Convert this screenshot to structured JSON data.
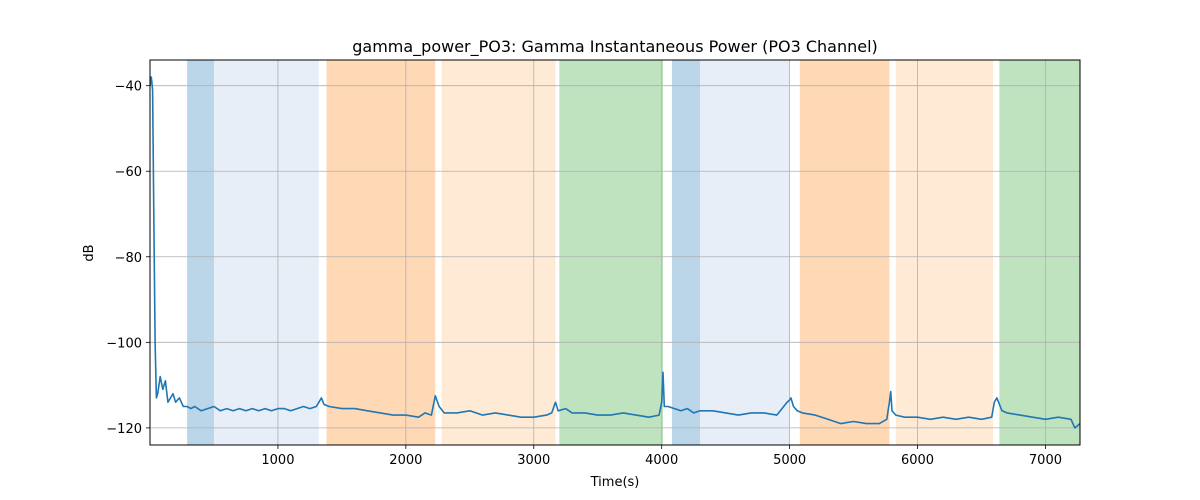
{
  "chart_data": {
    "type": "line",
    "title": "gamma_power_PO3: Gamma Instantaneous Power (PO3 Channel)",
    "xlabel": "Time(s)",
    "ylabel": "dB",
    "xlim": [
      0,
      7270
    ],
    "ylim": [
      -124,
      -34
    ],
    "x_ticks": [
      1000,
      2000,
      3000,
      4000,
      5000,
      6000,
      7000
    ],
    "x_tick_labels": [
      "1000",
      "2000",
      "3000",
      "4000",
      "5000",
      "6000",
      "7000"
    ],
    "y_ticks": [
      -40,
      -60,
      -80,
      -100,
      -120
    ],
    "y_tick_labels": [
      "−40",
      "−60",
      "−80",
      "−100",
      "−120"
    ],
    "grid": true,
    "line_color": "#1f77b4",
    "shaded_regions": [
      {
        "x0": 290,
        "x1": 500,
        "color": "#1f77b4",
        "opacity": 0.3
      },
      {
        "x0": 500,
        "x1": 1320,
        "color": "#aec7e8",
        "opacity": 0.3
      },
      {
        "x0": 1380,
        "x1": 2230,
        "color": "#ff7f0e",
        "opacity": 0.3
      },
      {
        "x0": 2280,
        "x1": 3170,
        "color": "#ffbb78",
        "opacity": 0.3
      },
      {
        "x0": 3200,
        "x1": 4010,
        "color": "#2ca02c",
        "opacity": 0.3
      },
      {
        "x0": 4080,
        "x1": 4300,
        "color": "#1f77b4",
        "opacity": 0.3
      },
      {
        "x0": 4300,
        "x1": 5000,
        "color": "#aec7e8",
        "opacity": 0.3
      },
      {
        "x0": 5080,
        "x1": 5780,
        "color": "#ff7f0e",
        "opacity": 0.3
      },
      {
        "x0": 5830,
        "x1": 6590,
        "color": "#ffbb78",
        "opacity": 0.3
      },
      {
        "x0": 6640,
        "x1": 7270,
        "color": "#2ca02c",
        "opacity": 0.3
      }
    ],
    "series": [
      {
        "x": [
          0,
          10,
          20,
          30,
          40,
          50,
          60,
          80,
          100,
          120,
          140,
          160,
          180,
          200,
          230,
          260,
          290,
          320,
          350,
          400,
          450,
          500,
          550,
          600,
          650,
          700,
          750,
          800,
          850,
          900,
          950,
          1000,
          1050,
          1100,
          1150,
          1200,
          1250,
          1300,
          1320,
          1340,
          1360,
          1400,
          1500,
          1600,
          1700,
          1800,
          1900,
          2000,
          2100,
          2150,
          2200,
          2220,
          2230,
          2260,
          2300,
          2400,
          2500,
          2600,
          2700,
          2800,
          2900,
          3000,
          3100,
          3140,
          3170,
          3190,
          3250,
          3300,
          3400,
          3500,
          3600,
          3700,
          3800,
          3900,
          3980,
          4000,
          4010,
          4020,
          4050,
          4100,
          4150,
          4200,
          4250,
          4300,
          4400,
          4500,
          4600,
          4700,
          4800,
          4900,
          4980,
          5000,
          5010,
          5030,
          5060,
          5100,
          5200,
          5300,
          5400,
          5500,
          5600,
          5700,
          5760,
          5780,
          5790,
          5800,
          5830,
          5900,
          6000,
          6100,
          6200,
          6300,
          6400,
          6500,
          6580,
          6600,
          6620,
          6660,
          6700,
          6800,
          6900,
          7000,
          7100,
          7200,
          7230,
          7270
        ],
        "y": [
          -40,
          -38,
          -41,
          -70,
          -100,
          -113,
          -112,
          -108,
          -111,
          -109,
          -114,
          -113,
          -112,
          -114,
          -113,
          -115,
          -115,
          -115.5,
          -115,
          -116,
          -115.5,
          -115,
          -116,
          -115.5,
          -116,
          -115.5,
          -116,
          -115.5,
          -116,
          -115.5,
          -116,
          -115.5,
          -115.5,
          -116,
          -115.5,
          -115,
          -115.5,
          -115,
          -114,
          -113,
          -114.5,
          -115,
          -115.5,
          -115.5,
          -116,
          -116.5,
          -117,
          -117,
          -117.5,
          -116.5,
          -117,
          -114,
          -112.5,
          -115,
          -116.5,
          -116.5,
          -116,
          -117,
          -116.5,
          -117,
          -117.5,
          -117.5,
          -117,
          -116.5,
          -114,
          -116,
          -115.5,
          -116.5,
          -116.5,
          -117,
          -117,
          -116.5,
          -117,
          -117.5,
          -117,
          -114,
          -107,
          -115,
          -115,
          -115.5,
          -116,
          -115.5,
          -116.5,
          -116,
          -116,
          -116.5,
          -117,
          -116.5,
          -116.5,
          -117,
          -114,
          -113.5,
          -113,
          -115,
          -116,
          -116.5,
          -117,
          -118,
          -119,
          -118.5,
          -119,
          -119,
          -118,
          -114,
          -111.5,
          -116,
          -117,
          -117.5,
          -117.5,
          -118,
          -117.5,
          -118,
          -117.5,
          -118,
          -117.5,
          -114,
          -113,
          -116,
          -116.5,
          -117,
          -117.5,
          -118,
          -117.5,
          -118,
          -120,
          -119
        ]
      }
    ]
  }
}
